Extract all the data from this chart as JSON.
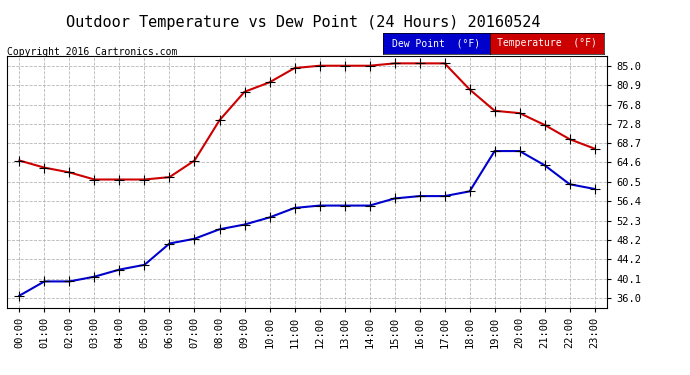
{
  "title": "Outdoor Temperature vs Dew Point (24 Hours) 20160524",
  "copyright": "Copyright 2016 Cartronics.com",
  "background_color": "#ffffff",
  "plot_bg_color": "#ffffff",
  "grid_color": "#aaaaaa",
  "x_labels": [
    "00:00",
    "01:00",
    "02:00",
    "03:00",
    "04:00",
    "05:00",
    "06:00",
    "07:00",
    "08:00",
    "09:00",
    "10:00",
    "11:00",
    "12:00",
    "13:00",
    "14:00",
    "15:00",
    "16:00",
    "17:00",
    "18:00",
    "19:00",
    "20:00",
    "21:00",
    "22:00",
    "23:00"
  ],
  "y_ticks": [
    36.0,
    40.1,
    44.2,
    48.2,
    52.3,
    56.4,
    60.5,
    64.6,
    68.7,
    72.8,
    76.8,
    80.9,
    85.0
  ],
  "temperature": [
    65.0,
    63.5,
    62.5,
    61.0,
    61.0,
    61.0,
    61.5,
    65.0,
    73.5,
    79.5,
    81.5,
    84.5,
    85.0,
    85.0,
    85.0,
    85.5,
    85.5,
    85.5,
    80.0,
    75.5,
    75.0,
    72.5,
    69.5,
    67.5
  ],
  "dew_point": [
    36.5,
    39.5,
    39.5,
    40.5,
    42.0,
    43.0,
    47.5,
    48.5,
    50.5,
    51.5,
    53.0,
    55.0,
    55.5,
    55.5,
    55.5,
    57.0,
    57.5,
    57.5,
    58.5,
    67.0,
    67.0,
    64.0,
    60.0,
    59.0
  ],
  "temp_color": "#cc0000",
  "dew_color": "#0000cc",
  "marker": "+",
  "markersize": 7,
  "linewidth": 1.5,
  "ylim": [
    34.0,
    87.0
  ],
  "legend_dew_label": "Dew Point  (°F)",
  "legend_temp_label": "Temperature  (°F)",
  "legend_dew_bg": "#0000cc",
  "legend_temp_bg": "#cc0000",
  "legend_text_color": "#ffffff",
  "title_fontsize": 11,
  "copyright_fontsize": 7,
  "tick_fontsize": 7.5
}
